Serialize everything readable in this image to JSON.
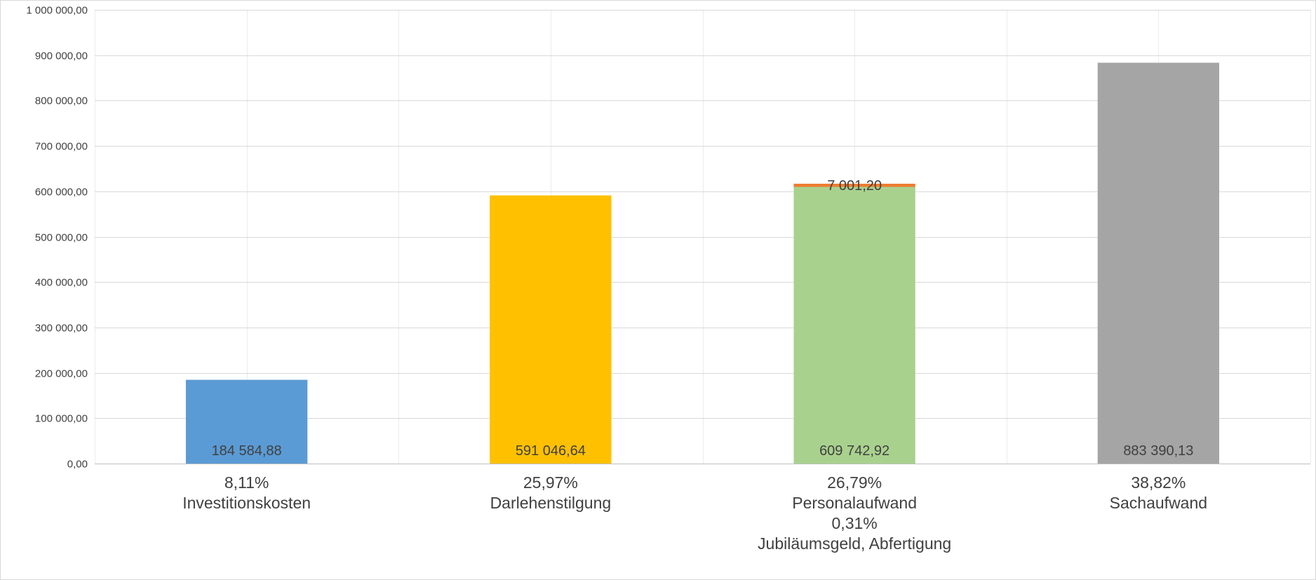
{
  "chart_data": {
    "type": "bar",
    "stacked": true,
    "ylim": [
      0,
      1000000
    ],
    "ytick_step": 100000,
    "yticks": [
      "0,00",
      "100 000,00",
      "200 000,00",
      "300 000,00",
      "400 000,00",
      "500 000,00",
      "600 000,00",
      "700 000,00",
      "800 000,00",
      "900 000,00",
      "1 000 000,00"
    ],
    "grid": true,
    "legend": "none",
    "categories": [
      {
        "lines": [
          "8,11%",
          "Investitionskosten"
        ]
      },
      {
        "lines": [
          "25,97%",
          "Darlehenstilgung"
        ]
      },
      {
        "lines": [
          "26,79%",
          "Personalaufwand",
          "0,31%",
          "Jubiläumsgeld, Abfertigung"
        ]
      },
      {
        "lines": [
          "38,82%",
          "Sachaufwand"
        ]
      }
    ],
    "segments": [
      [
        {
          "value": 184584.88,
          "label": "184 584,88",
          "color": "#5b9bd5",
          "label_pos": "bottom"
        }
      ],
      [
        {
          "value": 591046.64,
          "label": "591 046,64",
          "color": "#ffc000",
          "label_pos": "bottom"
        }
      ],
      [
        {
          "value": 609742.92,
          "label": "609 742,92",
          "color": "#a9d18e",
          "label_pos": "bottom"
        },
        {
          "value": 7001.2,
          "label": "7 001,20",
          "color": "#ed7d31",
          "label_pos": "center"
        }
      ],
      [
        {
          "value": 883390.13,
          "label": "883 390,13",
          "color": "#a5a5a5",
          "label_pos": "bottom"
        }
      ]
    ]
  }
}
